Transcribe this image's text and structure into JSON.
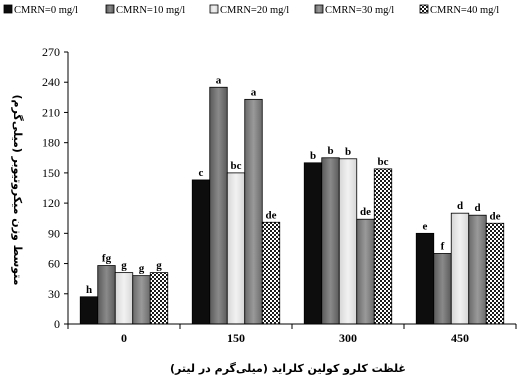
{
  "chart_data": {
    "type": "bar",
    "title": "",
    "xlabel": "غلظت کلرو کولین کلراید (میلی‌گرم در لیتر)",
    "ylabel": "متوسط وزن میکروتیوبر (میلی‌گرم)",
    "ylim": [
      0,
      270
    ],
    "yticks": [
      "0",
      "30",
      "60",
      "90",
      "120",
      "150",
      "180",
      "210",
      "240",
      "270"
    ],
    "grid": false,
    "legend_position": "top",
    "categories": [
      "0",
      "150",
      "300",
      "450"
    ],
    "series": [
      {
        "name": "CMRN=0 mg/l",
        "pattern": "black",
        "values": [
          27,
          143,
          160,
          90
        ],
        "labels": [
          "h",
          "c",
          "b",
          "e"
        ]
      },
      {
        "name": "CMRN=10 mg/l",
        "pattern": "dark-gray",
        "values": [
          58,
          235,
          165,
          70
        ],
        "labels": [
          "fg",
          "a",
          "b",
          "f"
        ]
      },
      {
        "name": "CMRN=20 mg/l",
        "pattern": "light-gray",
        "values": [
          51,
          150,
          164,
          110
        ],
        "labels": [
          "g",
          "bc",
          "b",
          "d"
        ]
      },
      {
        "name": "CMRN=30 mg/l",
        "pattern": "medium-gray",
        "values": [
          48,
          223,
          104,
          108
        ],
        "labels": [
          "g",
          "a",
          "de",
          "d"
        ]
      },
      {
        "name": "CMRN=40 mg/l",
        "pattern": "checkered",
        "values": [
          51,
          101,
          154,
          100
        ],
        "labels": [
          "g",
          "de",
          "bc",
          "de"
        ]
      }
    ]
  }
}
